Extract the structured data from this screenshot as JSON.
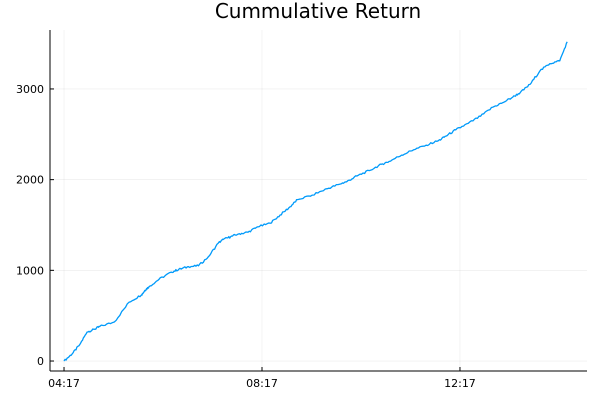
{
  "chart_data": {
    "type": "line",
    "title": "Cummulative Return",
    "xlabel": "",
    "ylabel": "",
    "x_ticks": [
      "04:17",
      "08:17",
      "12:17"
    ],
    "x_tick_hours": [
      4.2833,
      8.2833,
      12.2833
    ],
    "xlim": [
      4.0,
      14.85
    ],
    "y_ticks": [
      "0",
      "1000",
      "2000",
      "3000"
    ],
    "y_tick_values": [
      0,
      1000,
      2000,
      3000
    ],
    "ylim": [
      -110,
      3650
    ],
    "grid": true,
    "legend": "none",
    "series": [
      {
        "color": "#009AFA",
        "x": [
          4.2833,
          4.45,
          4.6,
          4.75,
          4.9,
          5.0,
          5.3,
          5.6,
          5.85,
          5.92,
          6.0,
          6.2,
          6.45,
          6.6,
          6.8,
          7.0,
          7.2,
          7.4,
          7.5,
          7.65,
          7.8,
          8.0,
          8.2,
          8.45,
          8.65,
          8.85,
          9.0,
          9.3,
          9.6,
          9.85,
          10.0,
          10.2,
          10.45,
          10.7,
          10.85,
          11.1,
          11.35,
          11.6,
          11.85,
          12.0,
          12.2,
          12.45,
          12.7,
          12.95,
          13.15,
          13.35,
          13.5,
          13.7,
          13.9,
          14.1,
          14.3,
          14.45
        ],
        "y": [
          0,
          80,
          180,
          320,
          350,
          380,
          430,
          650,
          730,
          780,
          820,
          900,
          980,
          1010,
          1040,
          1050,
          1150,
          1300,
          1340,
          1370,
          1400,
          1420,
          1480,
          1520,
          1610,
          1700,
          1780,
          1830,
          1900,
          1950,
          1980,
          2040,
          2100,
          2170,
          2200,
          2270,
          2330,
          2380,
          2430,
          2480,
          2550,
          2620,
          2700,
          2800,
          2850,
          2910,
          2960,
          3050,
          3200,
          3280,
          3310,
          3520
        ]
      }
    ]
  }
}
